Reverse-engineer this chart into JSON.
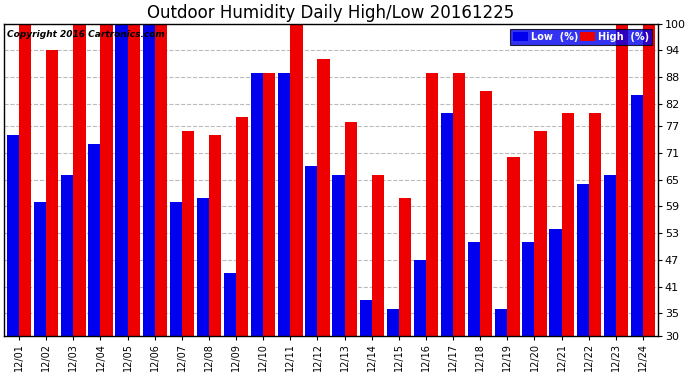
{
  "title": "Outdoor Humidity Daily High/Low 20161225",
  "copyright": "Copyright 2016 Cartronics.com",
  "dates": [
    "12/01",
    "12/02",
    "12/03",
    "12/04",
    "12/05",
    "12/06",
    "12/07",
    "12/08",
    "12/09",
    "12/10",
    "12/11",
    "12/12",
    "12/13",
    "12/14",
    "12/15",
    "12/16",
    "12/17",
    "12/18",
    "12/19",
    "12/20",
    "12/21",
    "12/22",
    "12/23",
    "12/24"
  ],
  "high": [
    100,
    94,
    100,
    100,
    100,
    100,
    76,
    75,
    79,
    89,
    100,
    92,
    78,
    66,
    61,
    89,
    89,
    85,
    70,
    76,
    80,
    80,
    100,
    100
  ],
  "low": [
    75,
    60,
    66,
    73,
    100,
    100,
    60,
    61,
    44,
    89,
    89,
    68,
    66,
    38,
    36,
    47,
    80,
    51,
    36,
    51,
    54,
    64,
    66,
    84
  ],
  "bar_color_low": "#0000ee",
  "bar_color_high": "#ee0000",
  "bg_color": "#ffffff",
  "plot_bg_color": "#ffffff",
  "grid_color": "#bbbbbb",
  "title_fontsize": 12,
  "yticks": [
    30,
    35,
    41,
    47,
    53,
    59,
    65,
    71,
    77,
    82,
    88,
    94,
    100
  ],
  "ymin": 30,
  "ymax": 100,
  "legend_low_label": "Low  (%)",
  "legend_high_label": "High  (%)"
}
